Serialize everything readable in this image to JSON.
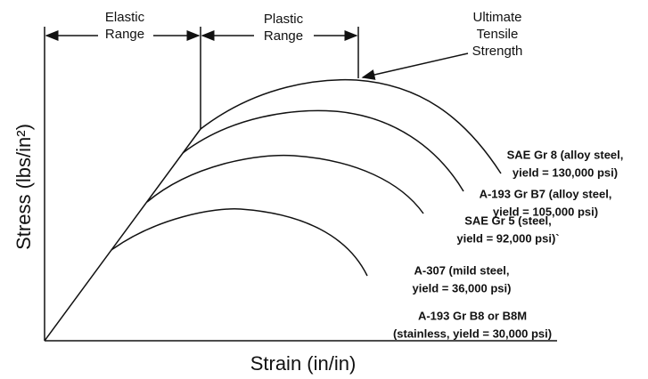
{
  "axes": {
    "y_label": "Stress (lbs/in²)",
    "x_label": "Strain (in/in)"
  },
  "ranges": [
    {
      "label_lines": [
        "Elastic",
        "Range"
      ]
    },
    {
      "label_lines": [
        "Plastic",
        "Range"
      ]
    }
  ],
  "annotation": {
    "label_lines": [
      "Ultimate",
      "Tensile",
      "Strength"
    ]
  },
  "curves": [
    {
      "label_lines": [
        "SAE Gr 8 (alloy steel,",
        "yield = 130,000 psi)"
      ]
    },
    {
      "label_lines": [
        "A-193 Gr B7 (alloy steel,",
        "yield = 105,000 psi)"
      ]
    },
    {
      "label_lines": [
        "SAE Gr 5 (steel,",
        "yield = 92,000 psi)`"
      ]
    },
    {
      "label_lines": [
        "A-307 (mild steel,",
        "yield = 36,000 psi)"
      ]
    },
    {
      "label_lines": [
        "A-193 Gr B8 or B8M",
        "(stainless, yield = 30,000 psi)"
      ]
    }
  ]
}
